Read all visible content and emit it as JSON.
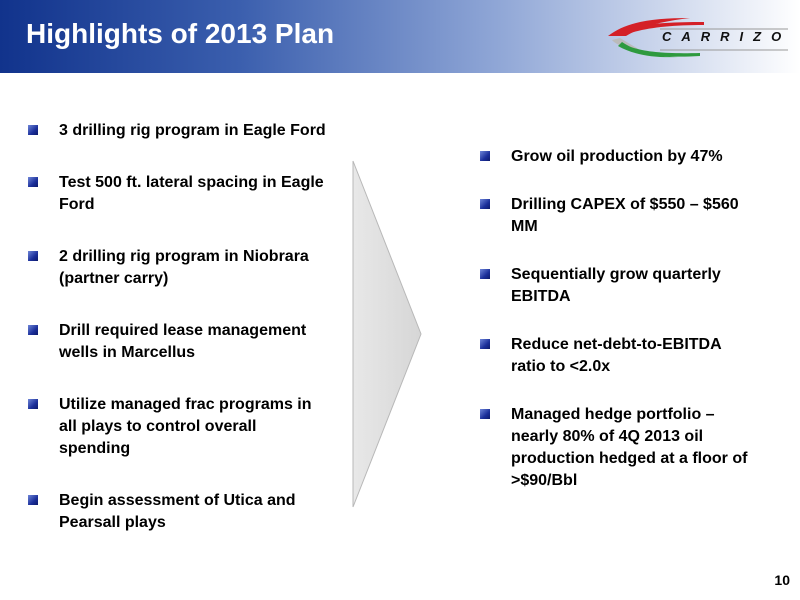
{
  "header": {
    "title": "Highlights of 2013 Plan",
    "logo_text": "CARRIZO"
  },
  "left_items": [
    "3 drilling rig program in Eagle Ford",
    "Test 500 ft. lateral spacing in Eagle Ford",
    "2 drilling rig program in Niobrara (partner carry)",
    "Drill required lease management wells in Marcellus",
    "Utilize managed frac programs in all plays to control overall spending",
    "Begin assessment of Utica and Pearsall plays"
  ],
  "right_items": [
    "Grow oil production by 47%",
    "Drilling CAPEX of $550 – $560 MM",
    "Sequentially grow quarterly EBITDA",
    "Reduce net-debt-to-EBITDA ratio to <2.0x",
    "Managed hedge portfolio – nearly 80% of 4Q 2013 oil production hedged at a floor of >$90/Bbl"
  ],
  "page_number": "10",
  "colors": {
    "header_dark": "#11338c",
    "bullet": "#1b2f9a",
    "logo_red": "#d42027",
    "logo_green": "#2e9a3e"
  }
}
